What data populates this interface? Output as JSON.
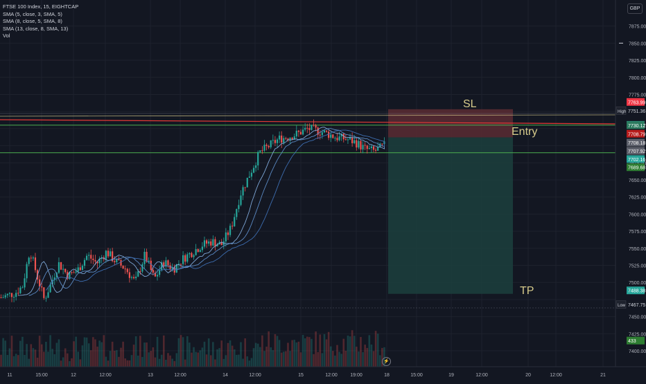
{
  "legend": {
    "symbol": "FTSE 100 Index, 15, EIGHTCAP",
    "sma1": "SMA (5, close, 3, SMA, 5)",
    "sma2": "SMA (8, close, 5, SMA, 8)",
    "sma3": "SMA (13, close, 8, SMA, 13)",
    "vol": "Vol"
  },
  "currency": "GBP",
  "colors": {
    "background": "#131722",
    "up": "#26a69a",
    "down": "#ef5350",
    "sl_zone": "#5b2c33",
    "tp_zone": "#1c3f3d",
    "annotation": "#d8cc8c",
    "hline_green": "#4caf50",
    "trendline_red": "#e53935"
  },
  "chart_data": {
    "type": "candlestick",
    "title": "FTSE 100 Index, 15, EIGHTCAP",
    "ylim": [
      7395,
      7905
    ],
    "y_ticks": [
      "7875.00",
      "7850.00",
      "7825.00",
      "7800.00",
      "7775.00",
      "7675.00",
      "7650.00",
      "7625.00",
      "7600.00",
      "7575.00",
      "7550.00",
      "7525.00",
      "7500.00",
      "7450.00",
      "7425.00",
      "7400.00"
    ],
    "x_ticks": [
      "11",
      "15:00",
      "12",
      "12:00",
      "13",
      "12:00",
      "14",
      "12:00",
      "15",
      "12:00",
      "19:00",
      "18",
      "15:00",
      "19",
      "12:00",
      "20",
      "12:00",
      "21"
    ],
    "price_path": [
      [
        0,
        7478
      ],
      [
        0.03,
        7485
      ],
      [
        0.045,
        7495
      ],
      [
        0.06,
        7548
      ],
      [
        0.075,
        7510
      ],
      [
        0.09,
        7475
      ],
      [
        0.105,
        7500
      ],
      [
        0.12,
        7528
      ],
      [
        0.14,
        7510
      ],
      [
        0.16,
        7518
      ],
      [
        0.18,
        7540
      ],
      [
        0.2,
        7528
      ],
      [
        0.22,
        7545
      ],
      [
        0.24,
        7530
      ],
      [
        0.26,
        7520
      ],
      [
        0.28,
        7500
      ],
      [
        0.3,
        7540
      ],
      [
        0.32,
        7505
      ],
      [
        0.34,
        7530
      ],
      [
        0.36,
        7520
      ],
      [
        0.38,
        7535
      ],
      [
        0.4,
        7545
      ],
      [
        0.42,
        7555
      ],
      [
        0.44,
        7560
      ],
      [
        0.46,
        7555
      ],
      [
        0.48,
        7580
      ],
      [
        0.5,
        7630
      ],
      [
        0.52,
        7660
      ],
      [
        0.54,
        7690
      ],
      [
        0.56,
        7700
      ],
      [
        0.58,
        7710
      ],
      [
        0.6,
        7713
      ],
      [
        0.62,
        7718
      ],
      [
        0.64,
        7725
      ],
      [
        0.66,
        7722
      ],
      [
        0.68,
        7718
      ],
      [
        0.7,
        7712
      ],
      [
        0.72,
        7710
      ],
      [
        0.74,
        7705
      ],
      [
        0.76,
        7695
      ],
      [
        0.78,
        7692
      ],
      [
        0.8,
        7700
      ]
    ],
    "annotations": [
      {
        "text": "SL",
        "price": 7751.36
      },
      {
        "text": "Entry",
        "price": 7708.18
      },
      {
        "text": "TP",
        "price": 7488.38
      }
    ],
    "horizontal_lines": [
      7730.12,
      7689.68,
      7708.79
    ],
    "markers": {
      "high": "High",
      "low": "Low"
    },
    "price_labels": [
      {
        "text": "7763.99",
        "price": 7763.99,
        "bg": "#f23645",
        "fg": "#ffffff"
      },
      {
        "text": "7751.36",
        "price": 7751.36,
        "bg": "#131722",
        "fg": "#d1d4dc"
      },
      {
        "text": "7730.52",
        "price": 7730.52,
        "bg": "#26a69a",
        "fg": "#ffffff"
      },
      {
        "text": "7730.12",
        "price": 7730.12,
        "bg": "#2b7a5e",
        "fg": "#ffffff"
      },
      {
        "text": "7708.79",
        "price": 7717.5,
        "bg": "#b71c1c",
        "fg": "#ffffff"
      },
      {
        "text": "7708.18",
        "price": 7704.5,
        "bg": "#5d606b",
        "fg": "#ffffff"
      },
      {
        "text": "7707.92",
        "price": 7692.5,
        "bg": "#5d606b",
        "fg": "#ffffff"
      },
      {
        "text": "7702.16",
        "price": 7680.5,
        "bg": "#26a69a",
        "fg": "#ffffff"
      },
      {
        "text": "7689.68",
        "price": 7668.5,
        "bg": "#2e7d32",
        "fg": "#ffffff"
      },
      {
        "text": "7488.38",
        "price": 7488.38,
        "bg": "#26a69a",
        "fg": "#ffffff"
      },
      {
        "text": "7467.75",
        "price": 7467.75,
        "bg": "#131722",
        "fg": "#d1d4dc"
      },
      {
        "text": "433",
        "price": 7415,
        "bg": "#2e7d32",
        "fg": "#ffffff"
      }
    ]
  }
}
